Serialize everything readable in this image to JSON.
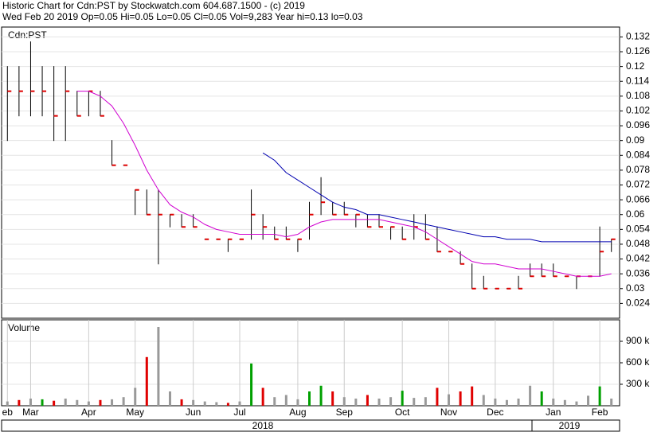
{
  "header": {
    "title": "Historic Chart for Cdn:PST by Stockwatch.com 604.687.1500 - (c) 2019",
    "status": "Wed Feb 20 2019  Op=0.05  Hi=0.05  Lo=0.05  Cl=0.05  Vol=9,283  Year hi=0.13  lo=0.03"
  },
  "chart_data": [
    {
      "type": "ohlc",
      "title": "Cdn:PST",
      "grid": true,
      "bar_color": "#000000",
      "close_color": "#e00000",
      "categories": [
        "eb",
        null,
        "Mar",
        null,
        null,
        null,
        null,
        "Apr",
        null,
        null,
        null,
        "May",
        null,
        null,
        null,
        null,
        "Jun",
        null,
        null,
        null,
        "Jul",
        null,
        null,
        null,
        null,
        "Aug",
        null,
        null,
        null,
        "Sep",
        null,
        null,
        null,
        null,
        "Oct",
        null,
        null,
        null,
        "Nov",
        null,
        null,
        null,
        "Dec",
        null,
        null,
        null,
        null,
        "Jan",
        null,
        null,
        null,
        "Feb",
        null
      ],
      "high": [
        0.12,
        0.12,
        0.13,
        0.12,
        0.12,
        0.12,
        0.11,
        0.11,
        0.11,
        0.09,
        0.08,
        0.07,
        0.07,
        0.07,
        0.06,
        0.06,
        0.06,
        0.05,
        0.05,
        0.05,
        0.05,
        0.07,
        0.06,
        0.055,
        0.055,
        0.05,
        0.065,
        0.075,
        0.065,
        0.065,
        0.06,
        0.06,
        0.06,
        0.055,
        0.055,
        0.06,
        0.06,
        0.055,
        0.045,
        0.045,
        0.04,
        0.035,
        0.03,
        0.03,
        0.035,
        0.04,
        0.04,
        0.04,
        0.035,
        0.035,
        0.035,
        0.055,
        0.05
      ],
      "low": [
        0.09,
        0.1,
        0.1,
        0.1,
        0.09,
        0.09,
        0.1,
        0.1,
        0.1,
        0.08,
        0.08,
        0.06,
        0.06,
        0.04,
        0.055,
        0.055,
        0.055,
        0.05,
        0.05,
        0.045,
        0.05,
        0.05,
        0.05,
        0.05,
        0.05,
        0.045,
        0.05,
        0.06,
        0.06,
        0.06,
        0.055,
        0.055,
        0.055,
        0.05,
        0.05,
        0.05,
        0.05,
        0.045,
        0.045,
        0.04,
        0.03,
        0.03,
        0.03,
        0.03,
        0.03,
        0.035,
        0.035,
        0.035,
        0.035,
        0.03,
        0.035,
        0.035,
        0.045
      ],
      "close": [
        0.11,
        0.11,
        0.11,
        0.11,
        0.1,
        0.11,
        0.1,
        0.11,
        0.1,
        0.08,
        0.08,
        0.07,
        0.06,
        0.06,
        0.06,
        0.055,
        0.055,
        0.05,
        0.05,
        0.05,
        0.05,
        0.06,
        0.055,
        0.05,
        0.05,
        0.05,
        0.06,
        0.065,
        0.06,
        0.06,
        0.06,
        0.055,
        0.055,
        0.055,
        0.05,
        0.055,
        0.05,
        0.045,
        0.045,
        0.04,
        0.03,
        0.03,
        0.03,
        0.03,
        0.03,
        0.035,
        0.035,
        0.035,
        0.035,
        0.035,
        0.035,
        0.045,
        0.05
      ],
      "series": [
        {
          "color": "#d000d0",
          "values": [
            null,
            null,
            null,
            null,
            null,
            null,
            0.11,
            0.11,
            0.108,
            0.104,
            0.097,
            0.088,
            0.078,
            0.07,
            0.064,
            0.061,
            0.059,
            0.056,
            0.054,
            0.053,
            0.052,
            0.052,
            0.052,
            0.052,
            0.051,
            0.052,
            0.055,
            0.057,
            0.058,
            0.058,
            0.058,
            0.058,
            0.058,
            0.057,
            0.056,
            0.055,
            0.053,
            0.05,
            0.047,
            0.044,
            0.041,
            0.04,
            0.04,
            0.039,
            0.038,
            0.038,
            0.038,
            0.037,
            0.036,
            0.035,
            0.035,
            0.035,
            0.036
          ]
        },
        {
          "color": "#0000b0",
          "values": [
            null,
            null,
            null,
            null,
            null,
            null,
            null,
            null,
            null,
            null,
            null,
            null,
            null,
            null,
            null,
            null,
            null,
            null,
            null,
            null,
            null,
            null,
            0.085,
            0.082,
            0.077,
            0.074,
            0.071,
            0.068,
            0.065,
            0.063,
            0.062,
            0.06,
            0.06,
            0.059,
            0.058,
            0.057,
            0.056,
            0.055,
            0.054,
            0.053,
            0.052,
            0.051,
            0.051,
            0.05,
            0.05,
            0.05,
            0.049,
            0.049,
            0.049,
            0.049,
            0.049,
            0.049,
            0.049
          ]
        }
      ],
      "ylim": [
        0.018,
        0.136
      ],
      "yticks": [
        0.024,
        0.03,
        0.036,
        0.042,
        0.048,
        0.054,
        0.06,
        0.066,
        0.072,
        0.078,
        0.084,
        0.09,
        0.096,
        0.102,
        0.108,
        0.114,
        0.12,
        0.126,
        0.132
      ]
    },
    {
      "type": "bar",
      "title": "Volume",
      "grid": true,
      "year_labels": [
        "2018",
        "2019"
      ],
      "values": [
        60000,
        80000,
        100000,
        90000,
        70000,
        100000,
        80000,
        60000,
        80000,
        90000,
        120000,
        250000,
        680000,
        1100000,
        200000,
        90000,
        80000,
        60000,
        50000,
        40000,
        60000,
        590000,
        250000,
        120000,
        150000,
        90000,
        200000,
        280000,
        200000,
        120000,
        100000,
        150000,
        100000,
        120000,
        210000,
        110000,
        120000,
        250000,
        160000,
        200000,
        270000,
        150000,
        100000,
        80000,
        100000,
        280000,
        200000,
        100000,
        80000,
        60000,
        140000,
        270000,
        100000
      ],
      "colors": [
        "#999999",
        "#e00000",
        "#999999",
        "#00a000",
        "#e00000",
        "#999999",
        "#999999",
        "#999999",
        "#e00000",
        "#999999",
        "#999999",
        "#999999",
        "#e00000",
        "#999999",
        "#999999",
        "#e00000",
        "#999999",
        "#999999",
        "#999999",
        "#e00000",
        "#999999",
        "#00a000",
        "#e00000",
        "#999999",
        "#999999",
        "#999999",
        "#00a000",
        "#00a000",
        "#e00000",
        "#999999",
        "#999999",
        "#e00000",
        "#999999",
        "#999999",
        "#00a000",
        "#999999",
        "#999999",
        "#e00000",
        "#999999",
        "#e00000",
        "#e00000",
        "#999999",
        "#999999",
        "#999999",
        "#999999",
        "#999999",
        "#00a000",
        "#999999",
        "#999999",
        "#999999",
        "#999999",
        "#00a000",
        "#999999"
      ],
      "ylim": [
        0,
        1200000
      ],
      "yticks": [
        {
          "value": 300000,
          "label": "300 k"
        },
        {
          "value": 600000,
          "label": "600 k"
        },
        {
          "value": 900000,
          "label": "900 k"
        }
      ]
    }
  ]
}
